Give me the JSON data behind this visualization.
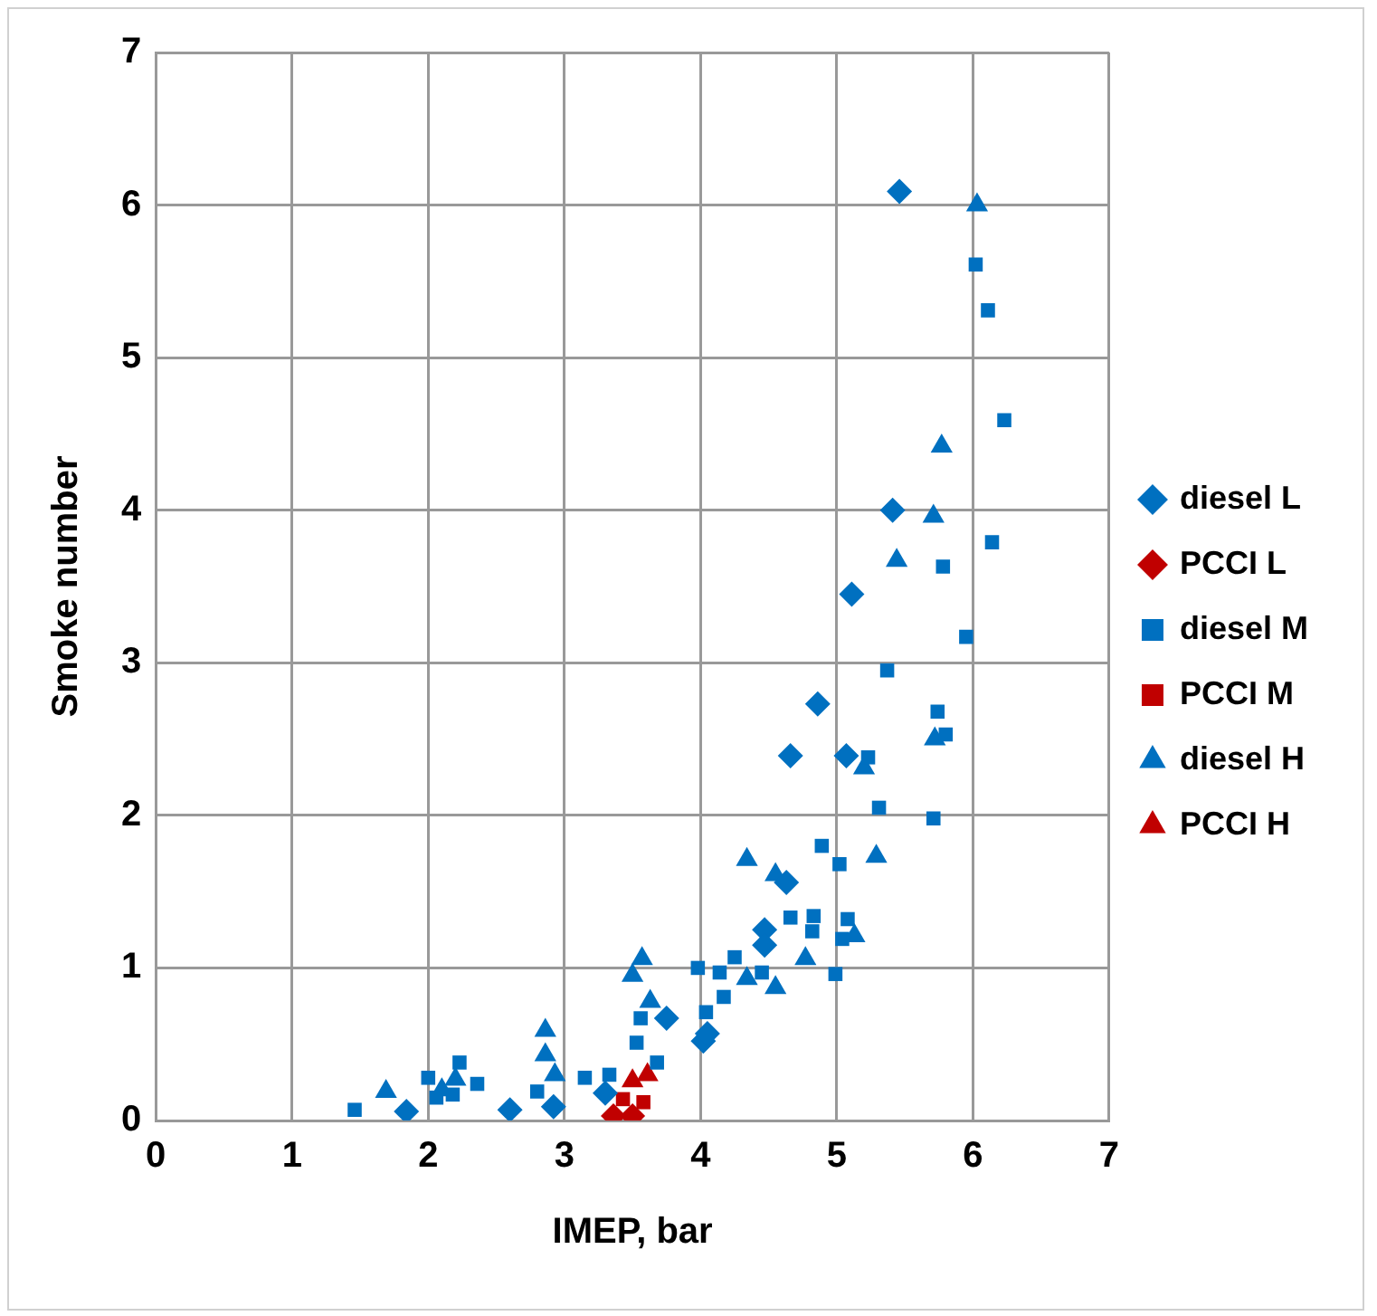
{
  "chart_data": {
    "type": "scatter",
    "xlabel": "IMEP, bar",
    "ylabel": "Smoke number",
    "xlim": [
      0,
      7
    ],
    "xticks": [
      0,
      1,
      2,
      3,
      4,
      5,
      6,
      7
    ],
    "ylim": [
      0,
      7
    ],
    "yticks": [
      0,
      1,
      2,
      3,
      4,
      5,
      6,
      7
    ],
    "grid": true,
    "legend": "right",
    "series": [
      {
        "name": "diesel L",
        "color": "#0070c0",
        "marker": "diamond",
        "x": [
          5.46,
          5.41,
          5.11,
          4.86,
          4.66,
          5.07,
          4.63,
          4.47,
          4.47,
          4.02,
          4.05,
          3.75,
          3.3,
          2.92,
          2.6,
          1.84
        ],
        "values": [
          6.09,
          4.0,
          3.45,
          2.73,
          2.39,
          2.39,
          1.56,
          1.25,
          1.15,
          0.52,
          0.57,
          0.67,
          0.18,
          0.09,
          0.07,
          0.06
        ]
      },
      {
        "name": "PCCI L",
        "color": "#c00000",
        "marker": "diamond",
        "x": [
          3.36,
          3.5
        ],
        "values": [
          0.03,
          0.03
        ]
      },
      {
        "name": "diesel M",
        "color": "#0070c0",
        "marker": "square",
        "x": [
          6.02,
          6.11,
          6.23,
          6.14,
          5.78,
          5.95,
          5.37,
          5.74,
          5.8,
          5.23,
          5.31,
          5.71,
          4.89,
          5.02,
          4.66,
          4.83,
          5.08,
          5.04,
          4.99,
          4.82,
          4.45,
          4.25,
          4.14,
          4.17,
          4.04,
          3.98,
          3.68,
          3.56,
          3.53,
          3.33,
          3.15,
          2.8,
          2.36,
          2.23,
          2.18,
          2.06,
          2.0,
          1.46
        ],
        "values": [
          5.61,
          5.31,
          4.59,
          3.79,
          3.63,
          3.17,
          2.95,
          2.68,
          2.53,
          2.38,
          2.05,
          1.98,
          1.8,
          1.68,
          1.33,
          1.34,
          1.32,
          1.19,
          0.96,
          1.24,
          0.97,
          1.07,
          0.97,
          0.81,
          0.71,
          1.0,
          0.38,
          0.67,
          0.51,
          0.3,
          0.28,
          0.19,
          0.24,
          0.38,
          0.17,
          0.15,
          0.28,
          0.07
        ]
      },
      {
        "name": "PCCI M",
        "color": "#c00000",
        "marker": "square",
        "x": [
          3.43,
          3.58
        ],
        "values": [
          0.14,
          0.12
        ]
      },
      {
        "name": "diesel H",
        "color": "#0070c0",
        "marker": "triangle",
        "x": [
          6.03,
          5.77,
          5.71,
          5.44,
          5.72,
          5.2,
          5.29,
          4.34,
          4.55,
          4.77,
          5.13,
          4.55,
          4.34,
          3.57,
          3.5,
          3.63,
          2.86,
          2.86,
          2.93,
          2.2,
          2.1,
          1.69
        ],
        "values": [
          6.0,
          4.42,
          3.96,
          3.67,
          2.5,
          2.31,
          1.73,
          1.71,
          1.61,
          1.06,
          1.21,
          0.87,
          0.93,
          1.06,
          0.95,
          0.78,
          0.59,
          0.43,
          0.3,
          0.27,
          0.2,
          0.19
        ]
      },
      {
        "name": "PCCI H",
        "color": "#c00000",
        "marker": "triangle",
        "x": [
          3.5,
          3.61
        ],
        "values": [
          0.26,
          0.3
        ]
      }
    ]
  }
}
